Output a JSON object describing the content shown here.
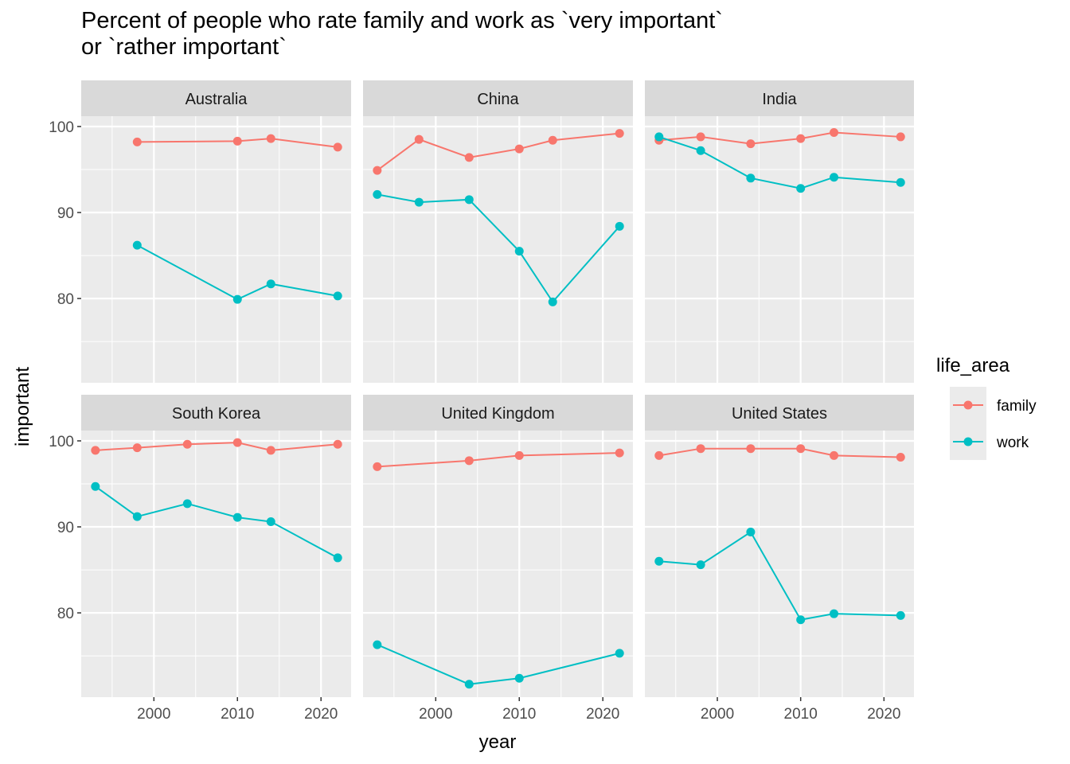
{
  "chart_data": {
    "type": "line",
    "title": "Percent of people who rate family and work as `very important`\nor `rather important`",
    "xlabel": "year",
    "ylabel": "important",
    "xlim": [
      1991.3,
      2023.6
    ],
    "ylim": [
      70.2,
      101.2
    ],
    "x_ticks": [
      2000,
      2010,
      2020
    ],
    "x_tick_labels": [
      "2000",
      "2010",
      "2020"
    ],
    "y_ticks": [
      80,
      90,
      100
    ],
    "y_tick_labels": [
      "80",
      "90",
      "100"
    ],
    "grid": true,
    "legend": {
      "title": "life_area",
      "placement": "right",
      "entries": [
        "family",
        "work"
      ]
    },
    "colors": {
      "family": "#F8766D",
      "work": "#00BFC4"
    },
    "facets": [
      {
        "name": "Australia",
        "series": [
          {
            "name": "family",
            "x": [
              1998,
              2010,
              2014,
              2022
            ],
            "y": [
              98.2,
              98.3,
              98.6,
              97.6
            ]
          },
          {
            "name": "work",
            "x": [
              1998,
              2010,
              2014,
              2022
            ],
            "y": [
              86.2,
              79.9,
              81.7,
              80.3
            ]
          }
        ]
      },
      {
        "name": "China",
        "series": [
          {
            "name": "family",
            "x": [
              1993,
              1998,
              2004,
              2010,
              2014,
              2022
            ],
            "y": [
              94.9,
              98.5,
              96.4,
              97.4,
              98.4,
              99.2
            ]
          },
          {
            "name": "work",
            "x": [
              1993,
              1998,
              2004,
              2010,
              2014,
              2022
            ],
            "y": [
              92.1,
              91.2,
              91.5,
              85.5,
              79.6,
              88.4
            ]
          }
        ]
      },
      {
        "name": "India",
        "series": [
          {
            "name": "family",
            "x": [
              1993,
              1998,
              2004,
              2010,
              2014,
              2022
            ],
            "y": [
              98.4,
              98.8,
              98.0,
              98.6,
              99.3,
              98.8
            ]
          },
          {
            "name": "work",
            "x": [
              1993,
              1998,
              2004,
              2010,
              2014,
              2022
            ],
            "y": [
              98.8,
              97.2,
              94.0,
              92.8,
              94.1,
              93.5
            ]
          }
        ]
      },
      {
        "name": "South Korea",
        "series": [
          {
            "name": "family",
            "x": [
              1993,
              1998,
              2004,
              2010,
              2014,
              2022
            ],
            "y": [
              98.9,
              99.2,
              99.6,
              99.8,
              98.9,
              99.6
            ]
          },
          {
            "name": "work",
            "x": [
              1993,
              1998,
              2004,
              2010,
              2014,
              2022
            ],
            "y": [
              94.7,
              91.2,
              92.7,
              91.1,
              90.6,
              86.4
            ]
          }
        ]
      },
      {
        "name": "United Kingdom",
        "series": [
          {
            "name": "family",
            "x": [
              1993,
              2004,
              2010,
              2022
            ],
            "y": [
              97.0,
              97.7,
              98.3,
              98.6
            ]
          },
          {
            "name": "work",
            "x": [
              1993,
              2004,
              2010,
              2022
            ],
            "y": [
              76.3,
              71.7,
              72.4,
              75.3
            ]
          }
        ]
      },
      {
        "name": "United States",
        "series": [
          {
            "name": "family",
            "x": [
              1993,
              1998,
              2004,
              2010,
              2014,
              2022
            ],
            "y": [
              98.3,
              99.1,
              99.1,
              99.1,
              98.3,
              98.1
            ]
          },
          {
            "name": "work",
            "x": [
              1993,
              1998,
              2004,
              2010,
              2014,
              2022
            ],
            "y": [
              86.0,
              85.6,
              89.4,
              79.2,
              79.9,
              79.7
            ]
          }
        ]
      }
    ]
  }
}
